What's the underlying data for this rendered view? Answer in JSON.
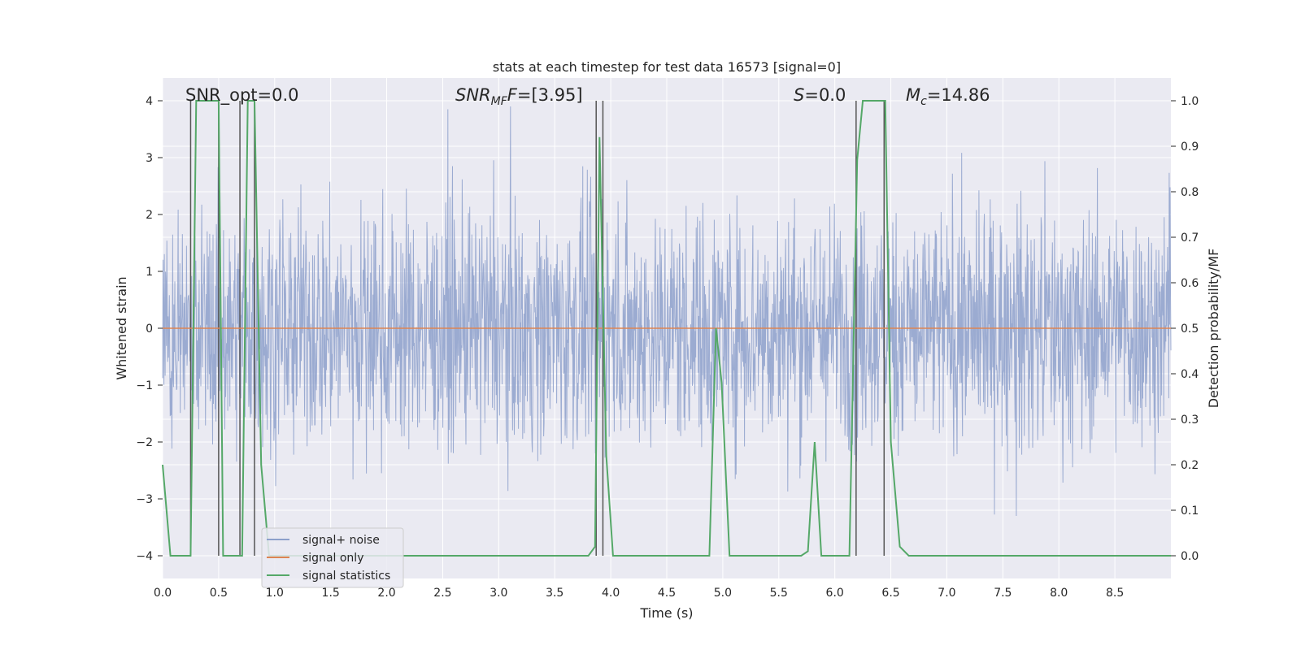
{
  "chart_data": {
    "type": "line",
    "title": "stats at each timestep for test data 16573 [signal=0]",
    "xlabel": "Time (s)",
    "ylabel": "Whitened strain",
    "ylabel_right": "Detection probability/MF",
    "xlim": [
      0.0,
      9.0
    ],
    "ylim": [
      -4.4,
      4.4
    ],
    "ylim_right": [
      -0.05,
      1.05
    ],
    "x_ticks": [
      "0.0",
      "0.5",
      "1.0",
      "1.5",
      "2.0",
      "2.5",
      "3.0",
      "3.5",
      "4.0",
      "4.5",
      "5.0",
      "5.5",
      "6.0",
      "6.5",
      "7.0",
      "7.5",
      "8.0",
      "8.5"
    ],
    "y_ticks": [
      "4",
      "3",
      "2",
      "1",
      "0",
      "−1",
      "−2",
      "−3",
      "−4"
    ],
    "y_ticks_right": [
      "1.0",
      "0.9",
      "0.8",
      "0.7",
      "0.6",
      "0.5",
      "0.4",
      "0.3",
      "0.2",
      "0.1",
      "0.0"
    ],
    "annotations": {
      "snr_opt": "SNR_opt=0.0",
      "snr_mf_main": "SNR",
      "snr_mf_sub": "MF",
      "snr_mf_value": "=[3.95]",
      "s_main": "S",
      "s_value": "=0.0",
      "mc_main": "M",
      "mc_sub": "c",
      "mc_value": "=14.86"
    },
    "legend": {
      "position": "lower-left",
      "entries": [
        {
          "label": "signal+ noise",
          "color": "#8da0cb"
        },
        {
          "label": "signal only",
          "color": "#dd8452"
        },
        {
          "label": "signal statistics",
          "color": "#55a868"
        }
      ]
    },
    "series": [
      {
        "name": "signal+ noise",
        "description_values": "dense noise roughly spanning -3 to +3.5",
        "noise_min": -3.3,
        "noise_max": 3.9
      },
      {
        "name": "signal only",
        "y": 0.0
      },
      {
        "name": "signal statistics",
        "axis": "right",
        "x": [
          0.0,
          0.07,
          0.24,
          0.25,
          0.3,
          0.5,
          0.54,
          0.57,
          0.66,
          0.71,
          0.76,
          0.82,
          0.88,
          0.95,
          1.0,
          2.0,
          3.0,
          3.8,
          3.86,
          3.9,
          3.96,
          4.02,
          4.08,
          4.2,
          4.4,
          4.8,
          4.88,
          4.94,
          4.99,
          5.06,
          5.3,
          5.7,
          5.76,
          5.82,
          5.88,
          5.96,
          6.13,
          6.2,
          6.25,
          6.45,
          6.5,
          6.58,
          6.66,
          7.0,
          9.0
        ],
        "y": [
          0.2,
          0.0,
          0.0,
          0.0,
          1.0,
          1.0,
          0.0,
          0.0,
          0.0,
          0.0,
          1.0,
          1.0,
          0.2,
          0.0,
          0.0,
          0.0,
          0.0,
          0.0,
          0.02,
          0.92,
          0.22,
          0.0,
          0.0,
          0.0,
          0.0,
          0.0,
          0.0,
          0.5,
          0.38,
          0.0,
          0.0,
          0.0,
          0.01,
          0.25,
          0.0,
          0.0,
          0.0,
          0.87,
          1.0,
          1.0,
          0.25,
          0.02,
          0.0,
          0.0,
          0.0
        ]
      },
      {
        "name": "peak markers",
        "x": [
          0.25,
          0.5,
          0.69,
          0.82,
          3.87,
          3.93,
          6.19,
          6.44
        ]
      }
    ]
  }
}
